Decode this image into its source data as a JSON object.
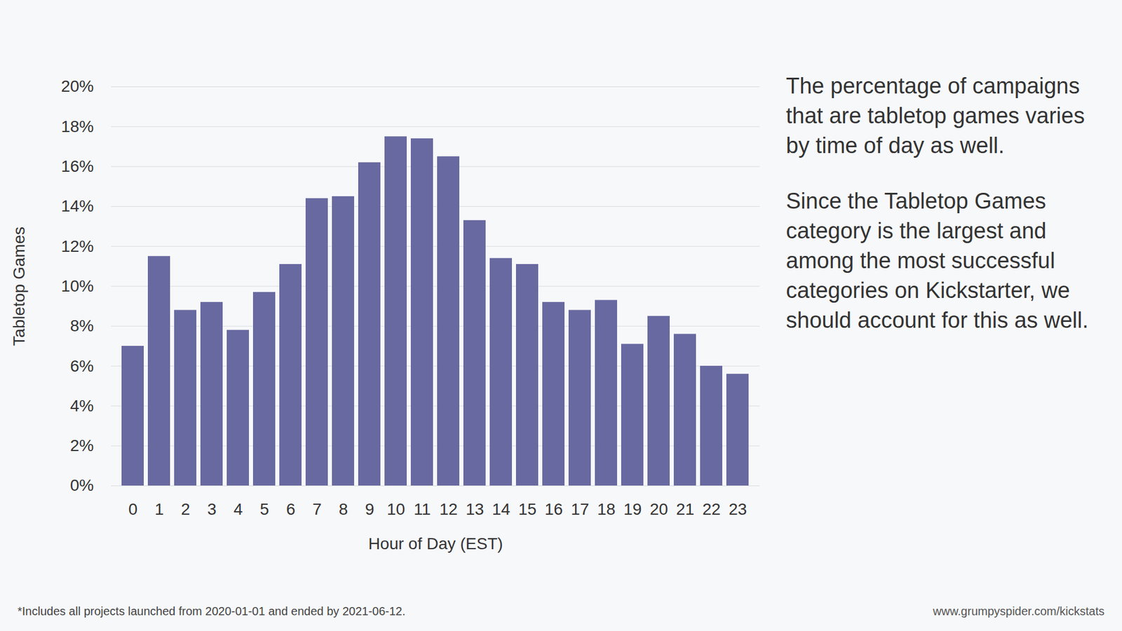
{
  "chart_data": {
    "type": "bar",
    "categories": [
      "0",
      "1",
      "2",
      "3",
      "4",
      "5",
      "6",
      "7",
      "8",
      "9",
      "10",
      "11",
      "12",
      "13",
      "14",
      "15",
      "16",
      "17",
      "18",
      "19",
      "20",
      "21",
      "22",
      "23"
    ],
    "values": [
      7.0,
      11.5,
      8.8,
      9.2,
      7.8,
      9.7,
      11.1,
      14.4,
      14.5,
      16.2,
      17.5,
      17.4,
      16.5,
      13.3,
      11.4,
      11.1,
      9.2,
      8.8,
      9.3,
      7.1,
      8.5,
      7.6,
      6.0,
      5.6
    ],
    "color": "#6869a0",
    "xlabel": "Hour of Day (EST)",
    "ylabel": "Tabletop Games",
    "ylim": [
      0,
      20
    ],
    "yticks": [
      {
        "value": 0,
        "label": "0%"
      },
      {
        "value": 2,
        "label": "2%"
      },
      {
        "value": 4,
        "label": "4%"
      },
      {
        "value": 6,
        "label": "6%"
      },
      {
        "value": 8,
        "label": "8%"
      },
      {
        "value": 10,
        "label": "10%"
      },
      {
        "value": 12,
        "label": "12%"
      },
      {
        "value": 14,
        "label": "14%"
      },
      {
        "value": 16,
        "label": "16%"
      },
      {
        "value": 18,
        "label": "18%"
      },
      {
        "value": 20,
        "label": "20%"
      }
    ],
    "grid": true,
    "annotations": [
      "The percentage of campaigns that are tabletop games varies by time of day as well.",
      "Since the Tabletop Games category is the largest and among the most successful categories on Kickstarter, we should account for this as well."
    ],
    "footnote": "*Includes all projects launched from 2020-01-01 and ended by 2021-06-12.",
    "source": "www.grumpyspider.com/kickstats"
  }
}
